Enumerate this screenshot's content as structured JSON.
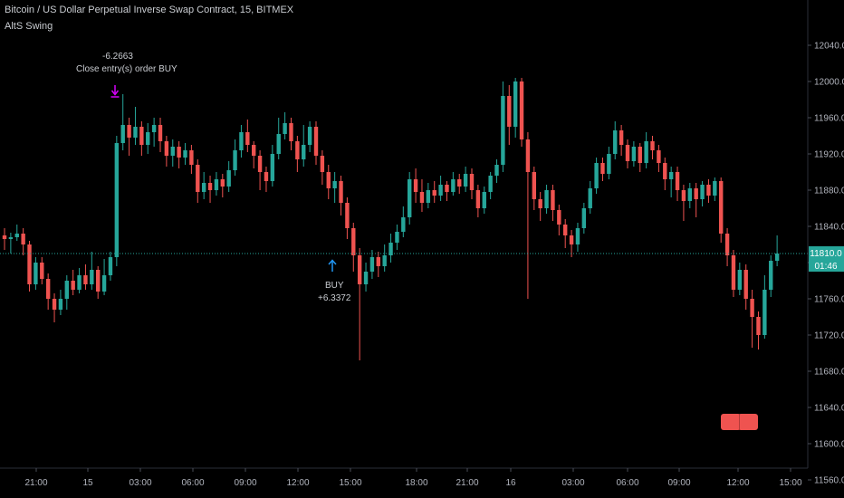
{
  "header": {
    "title": "Bitcoin / US Dollar Perpetual Inverse Swap Contract, 15, BITMEX",
    "study": "AltS Swing"
  },
  "colors": {
    "background": "#000000",
    "up": "#26a69a",
    "down": "#ef5350",
    "axis_text": "#b2b5be",
    "signal_buy": "#2196f3",
    "signal_close": "#d500f9"
  },
  "price_badge": {
    "price": "11810.0",
    "countdown": "01:46"
  },
  "annotations": {
    "close_value": "-6.2663",
    "close_label": "Close entry(s) order BUY",
    "buy_label": "BUY",
    "buy_value": "+6.3372"
  },
  "chart_data": {
    "type": "candlestick",
    "y_axis": {
      "ylim": [
        11520,
        12070
      ],
      "ticks": [
        11560,
        11600,
        11640,
        11680,
        11720,
        11760,
        11800,
        11840,
        11880,
        11920,
        11960,
        12000,
        12040
      ],
      "tick_labels": [
        "11560.0",
        "11600.0",
        "11640.0",
        "11680.0",
        "11720.0",
        "11760.0",
        "11800.0",
        "11840.0",
        "11880.0",
        "11920.0",
        "11960.0",
        "12000.0",
        "12040.0"
      ]
    },
    "x_axis": {
      "tick_labels": [
        "21:00",
        "15",
        "03:00",
        "06:00",
        "09:00",
        "12:00",
        "15:00",
        "18:00",
        "21:00",
        "16",
        "03:00",
        "06:00",
        "09:00",
        "12:00",
        "15:00"
      ]
    },
    "last_price": 11810,
    "candles": [
      [
        11830,
        11826,
        11838,
        11814
      ],
      [
        11826,
        11828,
        11833,
        11810
      ],
      [
        11828,
        11832,
        11842,
        11824
      ],
      [
        11832,
        11820,
        11838,
        11808
      ],
      [
        11820,
        11776,
        11824,
        11768
      ],
      [
        11776,
        11800,
        11806,
        11770
      ],
      [
        11800,
        11782,
        11806,
        11776
      ],
      [
        11782,
        11760,
        11788,
        11748
      ],
      [
        11760,
        11748,
        11766,
        11734
      ],
      [
        11748,
        11760,
        11770,
        11742
      ],
      [
        11760,
        11780,
        11786,
        11748
      ],
      [
        11780,
        11770,
        11792,
        11764
      ],
      [
        11770,
        11786,
        11794,
        11766
      ],
      [
        11786,
        11776,
        11798,
        11770
      ],
      [
        11776,
        11792,
        11812,
        11770
      ],
      [
        11792,
        11768,
        11796,
        11760
      ],
      [
        11768,
        11786,
        11804,
        11764
      ],
      [
        11786,
        11806,
        11812,
        11780
      ],
      [
        11806,
        11932,
        11940,
        11796
      ],
      [
        11932,
        11952,
        11986,
        11924
      ],
      [
        11952,
        11938,
        11960,
        11918
      ],
      [
        11938,
        11950,
        11972,
        11930
      ],
      [
        11950,
        11930,
        11956,
        11918
      ],
      [
        11930,
        11944,
        11954,
        11920
      ],
      [
        11944,
        11952,
        11960,
        11928
      ],
      [
        11952,
        11934,
        11960,
        11922
      ],
      [
        11934,
        11918,
        11940,
        11906
      ],
      [
        11918,
        11928,
        11936,
        11906
      ],
      [
        11928,
        11916,
        11934,
        11904
      ],
      [
        11916,
        11924,
        11932,
        11908
      ],
      [
        11924,
        11908,
        11930,
        11898
      ],
      [
        11908,
        11878,
        11914,
        11866
      ],
      [
        11878,
        11888,
        11900,
        11870
      ],
      [
        11888,
        11880,
        11896,
        11866
      ],
      [
        11880,
        11892,
        11900,
        11874
      ],
      [
        11892,
        11884,
        11898,
        11872
      ],
      [
        11884,
        11902,
        11912,
        11878
      ],
      [
        11902,
        11924,
        11936,
        11896
      ],
      [
        11924,
        11944,
        11952,
        11916
      ],
      [
        11944,
        11930,
        11958,
        11922
      ],
      [
        11930,
        11918,
        11934,
        11904
      ],
      [
        11918,
        11900,
        11924,
        11880
      ],
      [
        11900,
        11890,
        11906,
        11878
      ],
      [
        11890,
        11920,
        11930,
        11884
      ],
      [
        11920,
        11942,
        11960,
        11914
      ],
      [
        11942,
        11954,
        11966,
        11936
      ],
      [
        11954,
        11934,
        11960,
        11924
      ],
      [
        11934,
        11914,
        11940,
        11900
      ],
      [
        11914,
        11930,
        11952,
        11906
      ],
      [
        11930,
        11950,
        11956,
        11922
      ],
      [
        11950,
        11918,
        11956,
        11908
      ],
      [
        11918,
        11900,
        11924,
        11886
      ],
      [
        11900,
        11882,
        11908,
        11870
      ],
      [
        11882,
        11890,
        11900,
        11866
      ],
      [
        11890,
        11866,
        11896,
        11852
      ],
      [
        11866,
        11838,
        11872,
        11826
      ],
      [
        11838,
        11808,
        11844,
        11790
      ],
      [
        11808,
        11776,
        11816,
        11692
      ],
      [
        11776,
        11790,
        11800,
        11768
      ],
      [
        11790,
        11806,
        11814,
        11782
      ],
      [
        11806,
        11796,
        11812,
        11784
      ],
      [
        11796,
        11808,
        11820,
        11790
      ],
      [
        11808,
        11822,
        11832,
        11800
      ],
      [
        11822,
        11834,
        11842,
        11814
      ],
      [
        11834,
        11850,
        11862,
        11828
      ],
      [
        11850,
        11892,
        11900,
        11842
      ],
      [
        11892,
        11878,
        11904,
        11866
      ],
      [
        11878,
        11866,
        11892,
        11856
      ],
      [
        11866,
        11880,
        11888,
        11860
      ],
      [
        11880,
        11874,
        11890,
        11866
      ],
      [
        11874,
        11886,
        11896,
        11868
      ],
      [
        11886,
        11878,
        11890,
        11868
      ],
      [
        11878,
        11892,
        11900,
        11874
      ],
      [
        11892,
        11884,
        11898,
        11876
      ],
      [
        11884,
        11898,
        11906,
        11878
      ],
      [
        11898,
        11880,
        11904,
        11870
      ],
      [
        11880,
        11860,
        11886,
        11850
      ],
      [
        11860,
        11878,
        11884,
        11854
      ],
      [
        11878,
        11896,
        11900,
        11870
      ],
      [
        11896,
        11908,
        11914,
        11888
      ],
      [
        11908,
        11984,
        12000,
        11900
      ],
      [
        11984,
        11950,
        11996,
        11930
      ],
      [
        11950,
        12000,
        12004,
        11938
      ],
      [
        12000,
        11936,
        12004,
        11928
      ],
      [
        11936,
        11900,
        11944,
        11760
      ],
      [
        11900,
        11870,
        11906,
        11858
      ],
      [
        11870,
        11860,
        11878,
        11846
      ],
      [
        11860,
        11880,
        11886,
        11854
      ],
      [
        11880,
        11858,
        11886,
        11846
      ],
      [
        11858,
        11842,
        11864,
        11830
      ],
      [
        11842,
        11830,
        11848,
        11816
      ],
      [
        11830,
        11820,
        11836,
        11806
      ],
      [
        11820,
        11838,
        11844,
        11812
      ],
      [
        11838,
        11860,
        11866,
        11832
      ],
      [
        11860,
        11882,
        11890,
        11854
      ],
      [
        11882,
        11910,
        11916,
        11876
      ],
      [
        11910,
        11898,
        11916,
        11890
      ],
      [
        11898,
        11920,
        11928,
        11892
      ],
      [
        11920,
        11946,
        11956,
        11914
      ],
      [
        11946,
        11930,
        11952,
        11918
      ],
      [
        11930,
        11912,
        11936,
        11904
      ],
      [
        11912,
        11928,
        11934,
        11906
      ],
      [
        11928,
        11910,
        11932,
        11900
      ],
      [
        11910,
        11934,
        11944,
        11904
      ],
      [
        11934,
        11924,
        11940,
        11914
      ],
      [
        11924,
        11910,
        11930,
        11900
      ],
      [
        11910,
        11892,
        11916,
        11880
      ],
      [
        11892,
        11900,
        11906,
        11872
      ],
      [
        11900,
        11880,
        11906,
        11868
      ],
      [
        11880,
        11868,
        11886,
        11846
      ],
      [
        11868,
        11882,
        11888,
        11860
      ],
      [
        11882,
        11870,
        11888,
        11850
      ],
      [
        11870,
        11886,
        11890,
        11862
      ],
      [
        11886,
        11874,
        11892,
        11866
      ],
      [
        11874,
        11890,
        11894,
        11868
      ],
      [
        11890,
        11832,
        11894,
        11822
      ],
      [
        11832,
        11808,
        11838,
        11796
      ],
      [
        11808,
        11770,
        11814,
        11762
      ],
      [
        11770,
        11792,
        11800,
        11764
      ],
      [
        11792,
        11760,
        11798,
        11748
      ],
      [
        11760,
        11740,
        11770,
        11706
      ],
      [
        11740,
        11720,
        11746,
        11704
      ],
      [
        11720,
        11770,
        11786,
        11716
      ],
      [
        11770,
        11802,
        11808,
        11762
      ],
      [
        11802,
        11810,
        11830,
        11796
      ]
    ]
  }
}
